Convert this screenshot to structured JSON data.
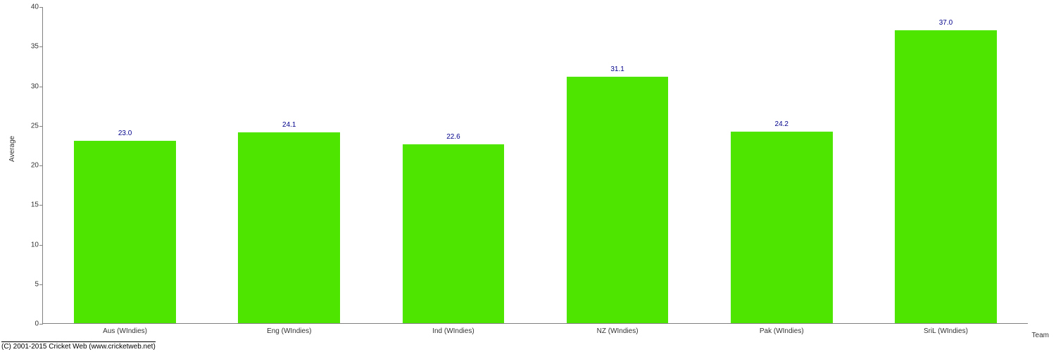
{
  "chart": {
    "type": "bar",
    "categories": [
      "Aus (WIndies)",
      "Eng (WIndies)",
      "Ind (WIndies)",
      "NZ (WIndies)",
      "Pak (WIndies)",
      "SriL (WIndies)"
    ],
    "values": [
      23.0,
      24.1,
      22.6,
      31.1,
      24.2,
      37.0
    ],
    "value_labels": [
      "23.0",
      "24.1",
      "22.6",
      "31.1",
      "24.2",
      "37.0"
    ],
    "bar_color": "#4ee600",
    "value_label_color": "#00008b",
    "ylabel": "Average",
    "xlabel": "Team",
    "ylim": [
      0,
      40
    ],
    "ytick_step": 5,
    "yticks": [
      "0",
      "5",
      "10",
      "15",
      "20",
      "25",
      "30",
      "35",
      "40"
    ],
    "axis_color": "#808080",
    "tick_fontsize": 10,
    "label_fontsize": 10,
    "background_color": "#ffffff",
    "bar_width": 0.62
  },
  "footer": {
    "copyright": "(C) 2001-2015 Cricket Web (www.cricketweb.net)"
  }
}
